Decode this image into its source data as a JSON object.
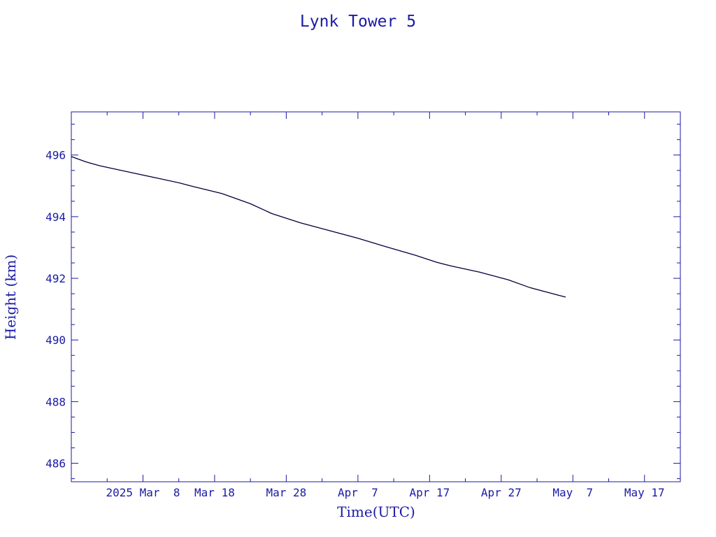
{
  "chart_data": {
    "type": "line",
    "title": "Lynk Tower 5",
    "xlabel": "Time(UTC)",
    "ylabel": "Height (km)",
    "x_tick_labels": [
      "2025 Mar  8",
      "Mar 18",
      "Mar 28",
      "Apr  7",
      "Apr 17",
      "Apr 27",
      "May  7",
      "May 17"
    ],
    "x_tick_dates": [
      "2025-03-08",
      "2025-03-18",
      "2025-03-28",
      "2025-04-07",
      "2025-04-17",
      "2025-04-27",
      "2025-05-07",
      "2025-05-17"
    ],
    "xlim": [
      "2025-02-26",
      "2025-05-22"
    ],
    "ylim": [
      485.4,
      497.4
    ],
    "y_ticks": [
      486,
      488,
      490,
      492,
      494,
      496
    ],
    "grid": false,
    "series": [
      {
        "color": "#00003c",
        "points": [
          [
            "2025-02-26",
            495.95
          ],
          [
            "2025-02-28",
            495.78
          ],
          [
            "2025-03-02",
            495.65
          ],
          [
            "2025-03-06",
            495.45
          ],
          [
            "2025-03-10",
            495.25
          ],
          [
            "2025-03-13",
            495.1
          ],
          [
            "2025-03-15",
            494.98
          ],
          [
            "2025-03-19",
            494.75
          ],
          [
            "2025-03-23",
            494.42
          ],
          [
            "2025-03-26",
            494.1
          ],
          [
            "2025-03-30",
            493.8
          ],
          [
            "2025-04-03",
            493.55
          ],
          [
            "2025-04-07",
            493.3
          ],
          [
            "2025-04-11",
            493.02
          ],
          [
            "2025-04-15",
            492.75
          ],
          [
            "2025-04-18",
            492.52
          ],
          [
            "2025-04-20",
            492.4
          ],
          [
            "2025-04-24",
            492.2
          ],
          [
            "2025-04-28",
            491.95
          ],
          [
            "2025-05-01",
            491.7
          ],
          [
            "2025-05-05",
            491.45
          ],
          [
            "2025-05-06",
            491.39
          ]
        ]
      }
    ]
  }
}
